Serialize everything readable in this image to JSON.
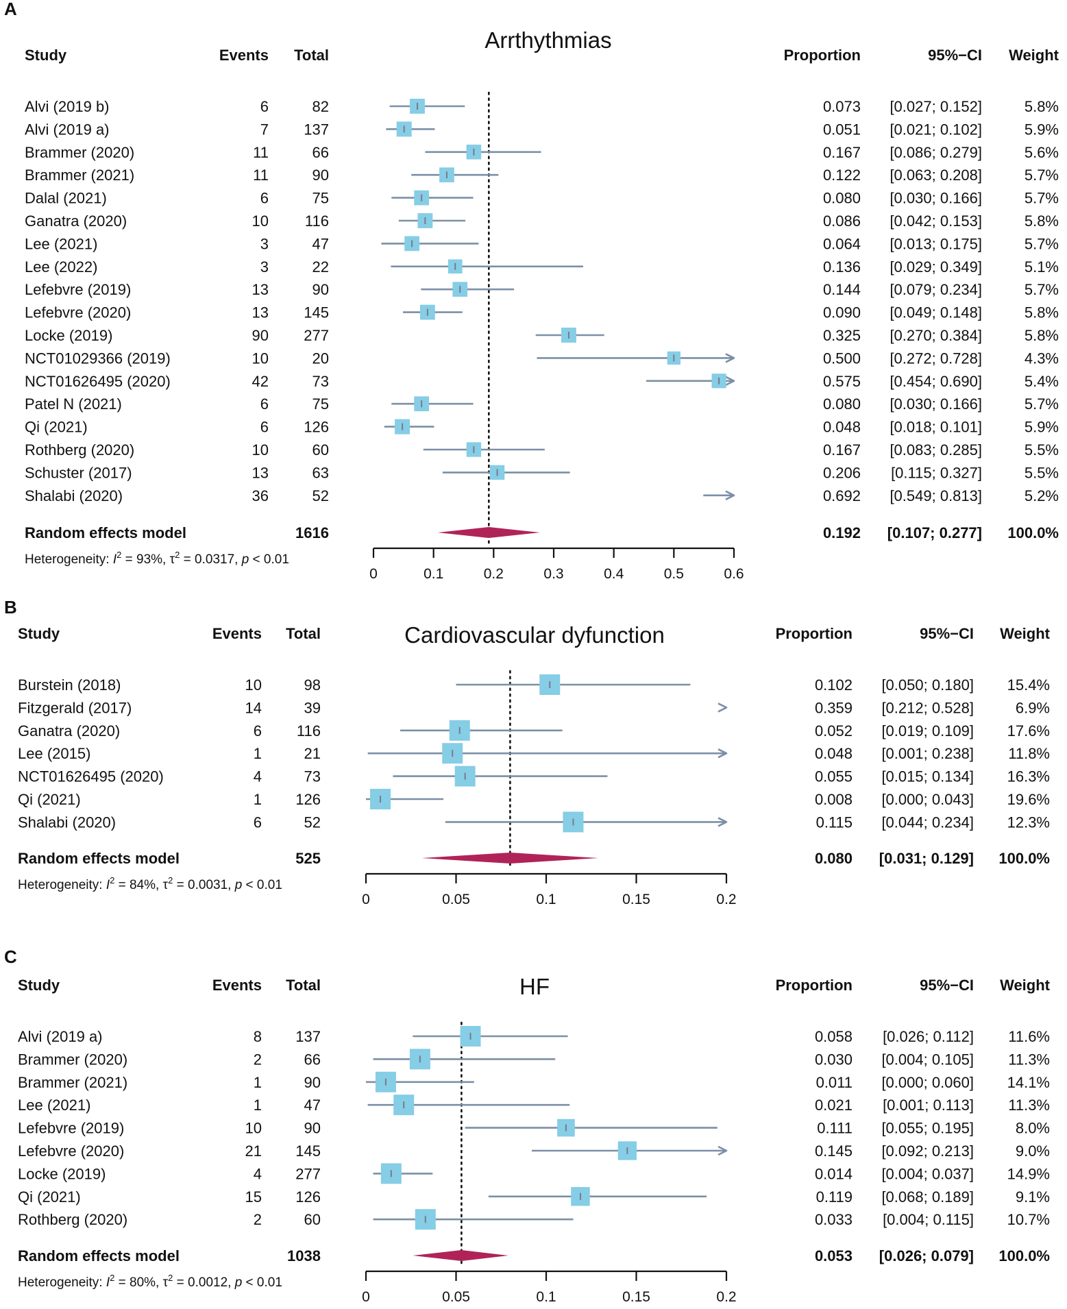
{
  "chart_data": [
    {
      "type": "forest",
      "panel": "A",
      "title": "Arrthythmias",
      "headers": {
        "study": "Study",
        "events": "Events",
        "total": "Total",
        "proportion": "Proportion",
        "ci": "95%−CI",
        "weight": "Weight"
      },
      "xlim": [
        0,
        0.6
      ],
      "ticks": [
        0,
        0.1,
        0.2,
        0.3,
        0.4,
        0.5,
        0.6
      ],
      "tick_labels": [
        "0",
        "0.1",
        "0.2",
        "0.3",
        "0.4",
        "0.5",
        "0.6"
      ],
      "studies": [
        {
          "name": "Alvi (2019 b)",
          "events": "6",
          "total": "82",
          "prop": 0.073,
          "lo": 0.027,
          "hi": 0.152,
          "prop_text": "0.073",
          "ci_text": "[0.027; 0.152]",
          "weight": 5.8,
          "weight_text": "5.8%"
        },
        {
          "name": "Alvi (2019 a)",
          "events": "7",
          "total": "137",
          "prop": 0.051,
          "lo": 0.021,
          "hi": 0.102,
          "prop_text": "0.051",
          "ci_text": "[0.021; 0.102]",
          "weight": 5.9,
          "weight_text": "5.9%"
        },
        {
          "name": "Brammer (2020)",
          "events": "11",
          "total": "66",
          "prop": 0.167,
          "lo": 0.086,
          "hi": 0.279,
          "prop_text": "0.167",
          "ci_text": "[0.086; 0.279]",
          "weight": 5.6,
          "weight_text": "5.6%"
        },
        {
          "name": "Brammer (2021)",
          "events": "11",
          "total": "90",
          "prop": 0.122,
          "lo": 0.063,
          "hi": 0.208,
          "prop_text": "0.122",
          "ci_text": "[0.063; 0.208]",
          "weight": 5.7,
          "weight_text": "5.7%"
        },
        {
          "name": "Dalal (2021)",
          "events": "6",
          "total": "75",
          "prop": 0.08,
          "lo": 0.03,
          "hi": 0.166,
          "prop_text": "0.080",
          "ci_text": "[0.030; 0.166]",
          "weight": 5.7,
          "weight_text": "5.7%"
        },
        {
          "name": "Ganatra (2020)",
          "events": "10",
          "total": "116",
          "prop": 0.086,
          "lo": 0.042,
          "hi": 0.153,
          "prop_text": "0.086",
          "ci_text": "[0.042; 0.153]",
          "weight": 5.8,
          "weight_text": "5.8%"
        },
        {
          "name": "Lee (2021)",
          "events": "3",
          "total": "47",
          "prop": 0.064,
          "lo": 0.013,
          "hi": 0.175,
          "prop_text": "0.064",
          "ci_text": "[0.013; 0.175]",
          "weight": 5.7,
          "weight_text": "5.7%"
        },
        {
          "name": "Lee (2022)",
          "events": "3",
          "total": "22",
          "prop": 0.136,
          "lo": 0.029,
          "hi": 0.349,
          "prop_text": "0.136",
          "ci_text": "[0.029; 0.349]",
          "weight": 5.1,
          "weight_text": "5.1%"
        },
        {
          "name": "Lefebvre (2019)",
          "events": "13",
          "total": "90",
          "prop": 0.144,
          "lo": 0.079,
          "hi": 0.234,
          "prop_text": "0.144",
          "ci_text": "[0.079; 0.234]",
          "weight": 5.7,
          "weight_text": "5.7%"
        },
        {
          "name": "Lefebvre (2020)",
          "events": "13",
          "total": "145",
          "prop": 0.09,
          "lo": 0.049,
          "hi": 0.148,
          "prop_text": "0.090",
          "ci_text": "[0.049; 0.148]",
          "weight": 5.8,
          "weight_text": "5.8%"
        },
        {
          "name": "Locke (2019)",
          "events": "90",
          "total": "277",
          "prop": 0.325,
          "lo": 0.27,
          "hi": 0.384,
          "prop_text": "0.325",
          "ci_text": "[0.270; 0.384]",
          "weight": 5.8,
          "weight_text": "5.8%"
        },
        {
          "name": "NCT01029366 (2019)",
          "events": "10",
          "total": "20",
          "prop": 0.5,
          "lo": 0.272,
          "hi": 0.728,
          "prop_text": "0.500",
          "ci_text": "[0.272; 0.728]",
          "weight": 4.3,
          "weight_text": "4.3%"
        },
        {
          "name": "NCT01626495 (2020)",
          "events": "42",
          "total": "73",
          "prop": 0.575,
          "lo": 0.454,
          "hi": 0.69,
          "prop_text": "0.575",
          "ci_text": "[0.454; 0.690]",
          "weight": 5.4,
          "weight_text": "5.4%"
        },
        {
          "name": "Patel N (2021)",
          "events": "6",
          "total": "75",
          "prop": 0.08,
          "lo": 0.03,
          "hi": 0.166,
          "prop_text": "0.080",
          "ci_text": "[0.030; 0.166]",
          "weight": 5.7,
          "weight_text": "5.7%"
        },
        {
          "name": "Qi (2021)",
          "events": "6",
          "total": "126",
          "prop": 0.048,
          "lo": 0.018,
          "hi": 0.101,
          "prop_text": "0.048",
          "ci_text": "[0.018; 0.101]",
          "weight": 5.9,
          "weight_text": "5.9%"
        },
        {
          "name": "Rothberg (2020)",
          "events": "10",
          "total": "60",
          "prop": 0.167,
          "lo": 0.083,
          "hi": 0.285,
          "prop_text": "0.167",
          "ci_text": "[0.083; 0.285]",
          "weight": 5.5,
          "weight_text": "5.5%"
        },
        {
          "name": "Schuster (2017)",
          "events": "13",
          "total": "63",
          "prop": 0.206,
          "lo": 0.115,
          "hi": 0.327,
          "prop_text": "0.206",
          "ci_text": "[0.115; 0.327]",
          "weight": 5.5,
          "weight_text": "5.5%"
        },
        {
          "name": "Shalabi (2020)",
          "events": "36",
          "total": "52",
          "prop": 0.692,
          "lo": 0.549,
          "hi": 0.813,
          "prop_text": "0.692",
          "ci_text": "[0.549; 0.813]",
          "weight": 5.2,
          "weight_text": "5.2%"
        }
      ],
      "pooled": {
        "label": "Random effects model",
        "total": "1616",
        "prop": 0.192,
        "lo": 0.107,
        "hi": 0.277,
        "prop_text": "0.192",
        "ci_text": "[0.107; 0.277]",
        "weight_text": "100.0%"
      },
      "heterogeneity": {
        "prefix": "Heterogeneity: ",
        "i2_text": " = 93%, ",
        "tau2_text": " = 0.0317, ",
        "p_text": " < 0.01"
      }
    },
    {
      "type": "forest",
      "panel": "B",
      "title": "Cardiovascular dyfunction",
      "headers": {
        "study": "Study",
        "events": "Events",
        "total": "Total",
        "proportion": "Proportion",
        "ci": "95%−CI",
        "weight": "Weight"
      },
      "xlim": [
        0,
        0.2
      ],
      "ticks": [
        0,
        0.05,
        0.1,
        0.15,
        0.2
      ],
      "tick_labels": [
        "0",
        "0.05",
        "0.1",
        "0.15",
        "0.2"
      ],
      "studies": [
        {
          "name": "Burstein (2018)",
          "events": "10",
          "total": "98",
          "prop": 0.102,
          "lo": 0.05,
          "hi": 0.18,
          "prop_text": "0.102",
          "ci_text": "[0.050; 0.180]",
          "weight": 15.4,
          "weight_text": "15.4%"
        },
        {
          "name": "Fitzgerald (2017)",
          "events": "14",
          "total": "39",
          "prop": 0.359,
          "lo": 0.212,
          "hi": 0.528,
          "prop_text": "0.359",
          "ci_text": "[0.212; 0.528]",
          "weight": 6.9,
          "weight_text": "6.9%"
        },
        {
          "name": "Ganatra (2020)",
          "events": "6",
          "total": "116",
          "prop": 0.052,
          "lo": 0.019,
          "hi": 0.109,
          "prop_text": "0.052",
          "ci_text": "[0.019; 0.109]",
          "weight": 17.6,
          "weight_text": "17.6%"
        },
        {
          "name": "Lee (2015)",
          "events": "1",
          "total": "21",
          "prop": 0.048,
          "lo": 0.001,
          "hi": 0.238,
          "prop_text": "0.048",
          "ci_text": "[0.001; 0.238]",
          "weight": 11.8,
          "weight_text": "11.8%"
        },
        {
          "name": "NCT01626495 (2020)",
          "events": "4",
          "total": "73",
          "prop": 0.055,
          "lo": 0.015,
          "hi": 0.134,
          "prop_text": "0.055",
          "ci_text": "[0.015; 0.134]",
          "weight": 16.3,
          "weight_text": "16.3%"
        },
        {
          "name": "Qi (2021)",
          "events": "1",
          "total": "126",
          "prop": 0.008,
          "lo": 0.0,
          "hi": 0.043,
          "prop_text": "0.008",
          "ci_text": "[0.000; 0.043]",
          "weight": 19.6,
          "weight_text": "19.6%"
        },
        {
          "name": "Shalabi (2020)",
          "events": "6",
          "total": "52",
          "prop": 0.115,
          "lo": 0.044,
          "hi": 0.234,
          "prop_text": "0.115",
          "ci_text": "[0.044; 0.234]",
          "weight": 12.3,
          "weight_text": "12.3%"
        }
      ],
      "pooled": {
        "label": "Random effects model",
        "total": "525",
        "prop": 0.08,
        "lo": 0.031,
        "hi": 0.129,
        "prop_text": "0.080",
        "ci_text": "[0.031; 0.129]",
        "weight_text": "100.0%"
      },
      "heterogeneity": {
        "prefix": "Heterogeneity: ",
        "i2_text": " = 84%, ",
        "tau2_text": " = 0.0031, ",
        "p_text": " < 0.01"
      }
    },
    {
      "type": "forest",
      "panel": "C",
      "title": "HF",
      "headers": {
        "study": "Study",
        "events": "Events",
        "total": "Total",
        "proportion": "Proportion",
        "ci": "95%−CI",
        "weight": "Weight"
      },
      "xlim": [
        0,
        0.2
      ],
      "ticks": [
        0,
        0.05,
        0.1,
        0.15,
        0.2
      ],
      "tick_labels": [
        "0",
        "0.05",
        "0.1",
        "0.15",
        "0.2"
      ],
      "studies": [
        {
          "name": "Alvi (2019 a)",
          "events": "8",
          "total": "137",
          "prop": 0.058,
          "lo": 0.026,
          "hi": 0.112,
          "prop_text": "0.058",
          "ci_text": "[0.026; 0.112]",
          "weight": 11.6,
          "weight_text": "11.6%"
        },
        {
          "name": "Brammer (2020)",
          "events": "2",
          "total": "66",
          "prop": 0.03,
          "lo": 0.004,
          "hi": 0.105,
          "prop_text": "0.030",
          "ci_text": "[0.004; 0.105]",
          "weight": 11.3,
          "weight_text": "11.3%"
        },
        {
          "name": "Brammer (2021)",
          "events": "1",
          "total": "90",
          "prop": 0.011,
          "lo": 0.0,
          "hi": 0.06,
          "prop_text": "0.011",
          "ci_text": "[0.000; 0.060]",
          "weight": 14.1,
          "weight_text": "14.1%"
        },
        {
          "name": "Lee (2021)",
          "events": "1",
          "total": "47",
          "prop": 0.021,
          "lo": 0.001,
          "hi": 0.113,
          "prop_text": "0.021",
          "ci_text": "[0.001; 0.113]",
          "weight": 11.3,
          "weight_text": "11.3%"
        },
        {
          "name": "Lefebvre (2019)",
          "events": "10",
          "total": "90",
          "prop": 0.111,
          "lo": 0.055,
          "hi": 0.195,
          "prop_text": "0.111",
          "ci_text": "[0.055; 0.195]",
          "weight": 8.0,
          "weight_text": "8.0%"
        },
        {
          "name": "Lefebvre (2020)",
          "events": "21",
          "total": "145",
          "prop": 0.145,
          "lo": 0.092,
          "hi": 0.213,
          "prop_text": "0.145",
          "ci_text": "[0.092; 0.213]",
          "weight": 9.0,
          "weight_text": "9.0%"
        },
        {
          "name": "Locke (2019)",
          "events": "4",
          "total": "277",
          "prop": 0.014,
          "lo": 0.004,
          "hi": 0.037,
          "prop_text": "0.014",
          "ci_text": "[0.004; 0.037]",
          "weight": 14.9,
          "weight_text": "14.9%"
        },
        {
          "name": "Qi (2021)",
          "events": "15",
          "total": "126",
          "prop": 0.119,
          "lo": 0.068,
          "hi": 0.189,
          "prop_text": "0.119",
          "ci_text": "[0.068; 0.189]",
          "weight": 9.1,
          "weight_text": "9.1%"
        },
        {
          "name": "Rothberg (2020)",
          "events": "2",
          "total": "60",
          "prop": 0.033,
          "lo": 0.004,
          "hi": 0.115,
          "prop_text": "0.033",
          "ci_text": "[0.004; 0.115]",
          "weight": 10.7,
          "weight_text": "10.7%"
        }
      ],
      "pooled": {
        "label": "Random effects model",
        "total": "1038",
        "prop": 0.053,
        "lo": 0.026,
        "hi": 0.079,
        "prop_text": "0.053",
        "ci_text": "[0.026; 0.079]",
        "weight_text": "100.0%"
      },
      "heterogeneity": {
        "prefix": "Heterogeneity: ",
        "i2_text": " = 80%, ",
        "tau2_text": " = 0.0012, ",
        "p_text": " < 0.01"
      }
    }
  ],
  "colors": {
    "box": "#86cde6",
    "ci_line": "#7b8fa6",
    "diamond": "#b02359",
    "text": "#111111"
  }
}
